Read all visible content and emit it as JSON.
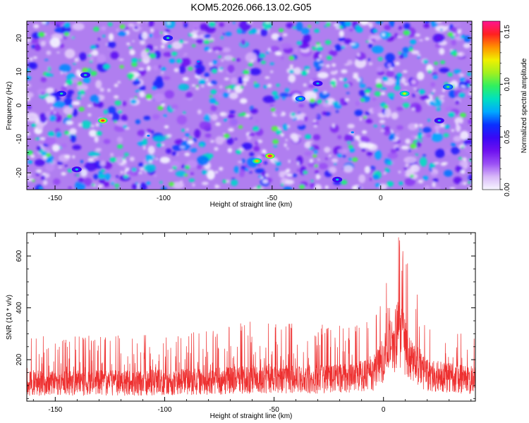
{
  "title": "KOM5.2026.066.13.02.G05",
  "chart_data": [
    {
      "type": "heatmap",
      "name": "spectrogram",
      "xlabel": "Height of straight line (km)",
      "ylabel": "Frequency (Hz)",
      "xlim": [
        -163,
        42
      ],
      "ylim": [
        -25,
        25
      ],
      "xticks": [
        -150,
        -100,
        -50,
        0
      ],
      "xtick_labels": [
        "-150",
        "-100",
        "-50",
        "0"
      ],
      "yticks": [
        20,
        10,
        0,
        -10,
        -20
      ],
      "ytick_labels": [
        "20",
        "10",
        "0",
        "-10",
        "-20"
      ],
      "colorbar": {
        "label": "Normalized spectral amplitude",
        "range": [
          0.0,
          0.16
        ],
        "ticks": [
          0.0,
          0.05,
          0.1,
          0.15
        ],
        "tick_labels": [
          "0.00",
          "0.05",
          "0.10",
          "0.15"
        ],
        "colors": [
          "#f7f7ff",
          "#d8b8f8",
          "#9b50f5",
          "#6e10f0",
          "#3a08f5",
          "#0a30ff",
          "#00a8ff",
          "#00e0c0",
          "#30f060",
          "#a0f020",
          "#f0f000",
          "#ff9000",
          "#ff2020",
          "#ff1490"
        ]
      },
      "hotspots": [
        {
          "x": -128,
          "y": -4.5,
          "v": 0.15
        },
        {
          "x": -51,
          "y": -15,
          "v": 0.16
        },
        {
          "x": -57,
          "y": -16.5,
          "v": 0.13
        },
        {
          "x": 11,
          "y": 3.5,
          "v": 0.12
        },
        {
          "x": -37,
          "y": 2,
          "v": 0.1
        },
        {
          "x": -136,
          "y": 9,
          "v": 0.09
        },
        {
          "x": -147,
          "y": 3.5,
          "v": 0.09
        },
        {
          "x": -29,
          "y": 6.5,
          "v": 0.08
        },
        {
          "x": -98,
          "y": 20,
          "v": 0.09
        },
        {
          "x": 31,
          "y": 5.5,
          "v": 0.1
        },
        {
          "x": -20,
          "y": -22,
          "v": 0.08
        },
        {
          "x": 27,
          "y": -4.5,
          "v": 0.08
        },
        {
          "x": -13,
          "y": -8,
          "v": 0.07
        },
        {
          "x": -140,
          "y": -19,
          "v": 0.08
        },
        {
          "x": -84,
          "y": 13,
          "v": 0.07
        },
        {
          "x": -107,
          "y": -9,
          "v": 0.07
        }
      ]
    },
    {
      "type": "line",
      "name": "snr",
      "xlabel": "Height of straight line (km)",
      "ylabel": "SNR (10 * v/v)",
      "xlim": [
        -163,
        42
      ],
      "ylim": [
        40,
        690
      ],
      "xticks": [
        -150,
        -100,
        -50,
        0
      ],
      "xtick_labels": [
        "-150",
        "-100",
        "-50",
        "0"
      ],
      "yticks": [
        200,
        400,
        600
      ],
      "ytick_labels": [
        "200",
        "400",
        "600"
      ],
      "color": "#ee3030",
      "envelope": [
        {
          "x": -163,
          "base": 110,
          "peak": 300
        },
        {
          "x": -120,
          "base": 110,
          "peak": 300
        },
        {
          "x": -80,
          "base": 115,
          "peak": 310
        },
        {
          "x": -60,
          "base": 125,
          "peak": 360
        },
        {
          "x": -40,
          "base": 125,
          "peak": 350
        },
        {
          "x": -20,
          "base": 125,
          "peak": 340
        },
        {
          "x": -5,
          "base": 140,
          "peak": 360
        },
        {
          "x": 2,
          "base": 230,
          "peak": 520
        },
        {
          "x": 7,
          "base": 300,
          "peak": 680
        },
        {
          "x": 12,
          "base": 210,
          "peak": 560
        },
        {
          "x": 20,
          "base": 140,
          "peak": 330
        },
        {
          "x": 42,
          "base": 120,
          "peak": 300
        }
      ]
    }
  ]
}
